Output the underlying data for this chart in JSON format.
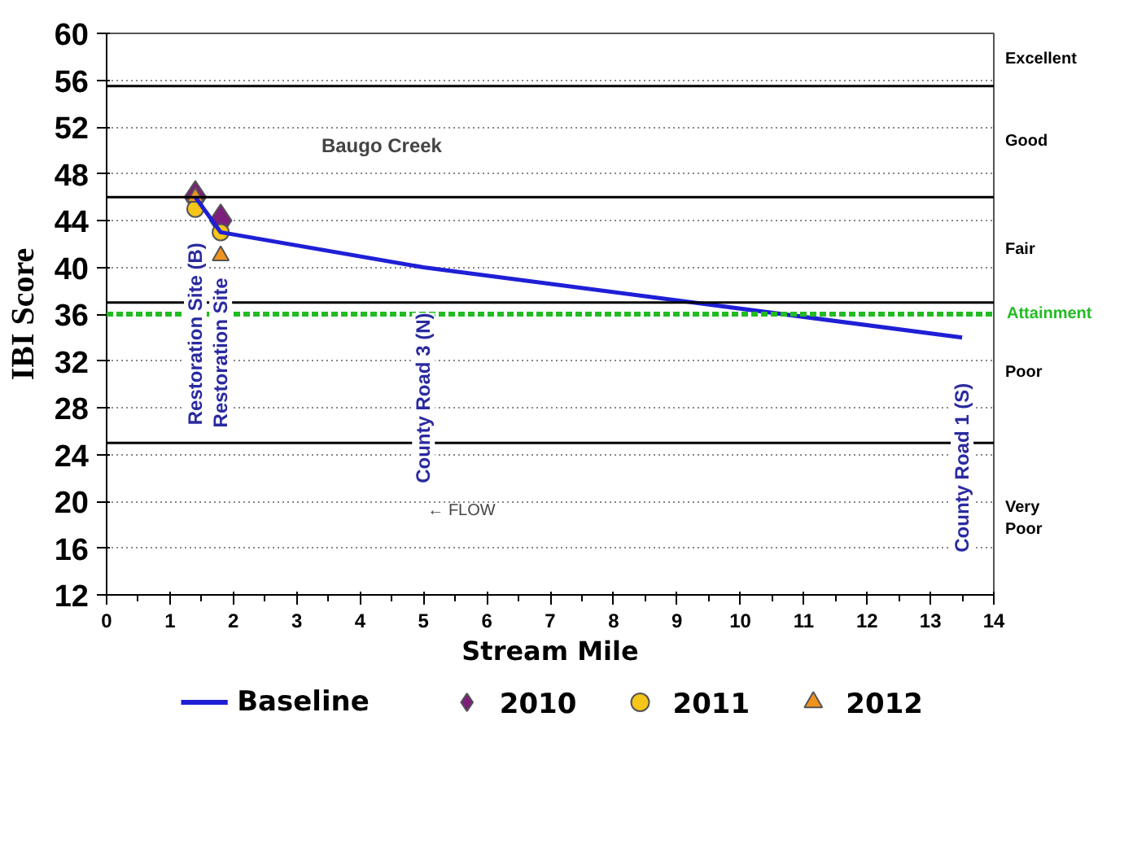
{
  "chart_data": {
    "type": "line",
    "title": "Baugo Creek",
    "xlabel": "Stream Mile",
    "ylabel": "IBI Score",
    "xlim": [
      0,
      14
    ],
    "xticks": [
      0,
      1,
      2,
      3,
      4,
      5,
      6,
      7,
      8,
      9,
      10,
      11,
      12,
      13,
      14
    ],
    "ylim": [
      12,
      60
    ],
    "yticks": [
      12,
      16,
      20,
      24,
      28,
      32,
      36,
      40,
      44,
      48,
      52,
      56,
      60
    ],
    "grid": "y",
    "legend": "bottom",
    "series": [
      {
        "name": "Baseline",
        "color": "#1f1fd6",
        "x": [
          1.4,
          1.8,
          5,
          13.5
        ],
        "values": [
          46,
          43,
          40,
          34
        ]
      },
      {
        "name": "2010",
        "type": "scatter",
        "marker": "diamond",
        "color": "#7b1f7b",
        "x": [
          1.4,
          1.8
        ],
        "values": [
          46,
          44
        ]
      },
      {
        "name": "2011",
        "type": "scatter",
        "marker": "circle",
        "color": "#f5c518",
        "x": [
          1.4,
          1.8
        ],
        "values": [
          45,
          43
        ]
      },
      {
        "name": "2012",
        "type": "scatter",
        "marker": "triangle",
        "color": "#f0931e",
        "x": [
          1.4,
          1.8
        ],
        "values": [
          46,
          41
        ]
      }
    ],
    "ref_lines": [
      {
        "axis": "y",
        "value": 55.5,
        "color": "#000000"
      },
      {
        "axis": "y",
        "value": 46,
        "color": "#000000"
      },
      {
        "axis": "y",
        "value": 37,
        "color": "#000000"
      },
      {
        "axis": "y",
        "value": 36,
        "label": "Attainment",
        "color": "#22bb22",
        "line_style": "dashed"
      },
      {
        "axis": "y",
        "value": 25,
        "color": "#000000"
      }
    ],
    "annotations": [
      {
        "text": "Restoration Site (B)",
        "x": 1.4,
        "y": 46
      },
      {
        "text": "Restoration Site",
        "x": 1.8,
        "y": 43
      },
      {
        "text": "County Road 3 (N)",
        "x": 5,
        "y": 40
      },
      {
        "text": "County Road 1 (S)",
        "x": 13.5,
        "y": 34
      },
      "Excellent",
      "Good",
      "Fair",
      "Poor",
      "Very\nPoor",
      "← FLOW"
    ]
  }
}
